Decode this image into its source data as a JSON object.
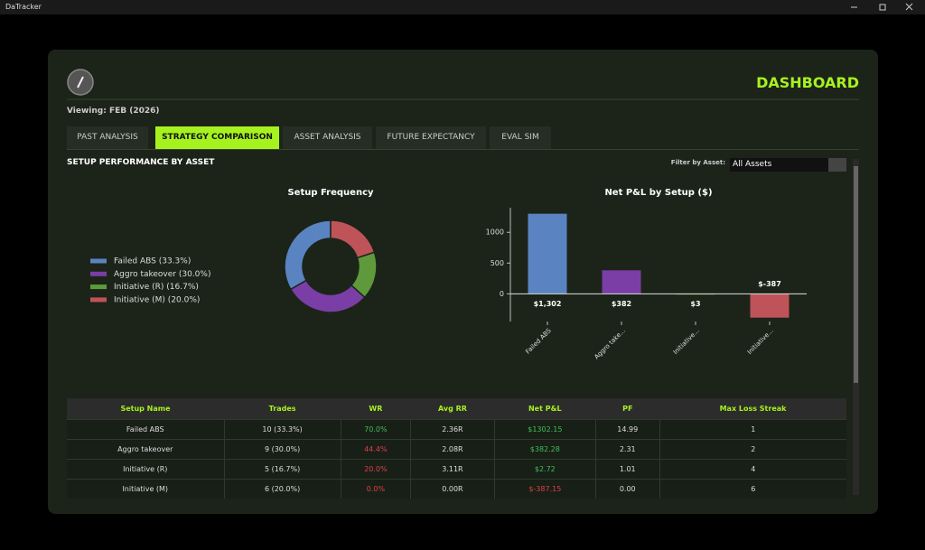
{
  "window": {
    "title": "DaTracker"
  },
  "header": {
    "title": "DASHBOARD",
    "viewing": "Viewing: FEB (2026)"
  },
  "tabs": [
    "PAST ANALYSIS",
    "STRATEGY COMPARISON",
    "ASSET ANALYSIS",
    "FUTURE EXPECTANCY",
    "EVAL SIM"
  ],
  "section_title": "SETUP PERFORMANCE BY ASSET",
  "filter": {
    "label": "Filter by Asset:",
    "value": "All Assets"
  },
  "chart_data": [
    {
      "type": "pie",
      "title": "Setup Frequency",
      "categories": [
        "Failed ABS (33.3%)",
        "Aggro takeover (30.0%)",
        "Initiative (R) (16.7%)",
        "Initiative (M) (20.0%)"
      ],
      "values": [
        33.3,
        30.0,
        16.7,
        20.0
      ],
      "colors": [
        "#5a83c2",
        "#7a3ea6",
        "#5e9a3b",
        "#bf535a"
      ]
    },
    {
      "type": "bar",
      "title": "Net P&L by Setup ($)",
      "categories": [
        "Failed ABS",
        "Aggro take...",
        "Initiative...",
        "Initiative..."
      ],
      "values": [
        1302.15,
        382.28,
        2.72,
        -387.15
      ],
      "value_labels": [
        "$1,302",
        "$382",
        "$3",
        "$-387"
      ],
      "colors": [
        "#5a83c2",
        "#7a3ea6",
        "#5e9a3b",
        "#bf535a"
      ],
      "ylim": [
        -450,
        1400
      ],
      "yticks": [
        0,
        500,
        1000
      ]
    }
  ],
  "table": {
    "columns": [
      "Setup Name",
      "Trades",
      "WR",
      "Avg RR",
      "Net P&L",
      "PF",
      "Max Loss Streak"
    ],
    "rows": [
      [
        "Failed ABS",
        "10 (33.3%)",
        "70.0%",
        "2.36R",
        "$1302.15",
        "14.99",
        "1"
      ],
      [
        "Aggro takeover",
        "9 (30.0%)",
        "44.4%",
        "2.08R",
        "$382.28",
        "2.31",
        "2"
      ],
      [
        "Initiative (R)",
        "5 (16.7%)",
        "20.0%",
        "3.11R",
        "$2.72",
        "1.01",
        "4"
      ],
      [
        "Initiative (M)",
        "6 (20.0%)",
        "0.0%",
        "0.00R",
        "$-387.15",
        "0.00",
        "6"
      ]
    ]
  }
}
